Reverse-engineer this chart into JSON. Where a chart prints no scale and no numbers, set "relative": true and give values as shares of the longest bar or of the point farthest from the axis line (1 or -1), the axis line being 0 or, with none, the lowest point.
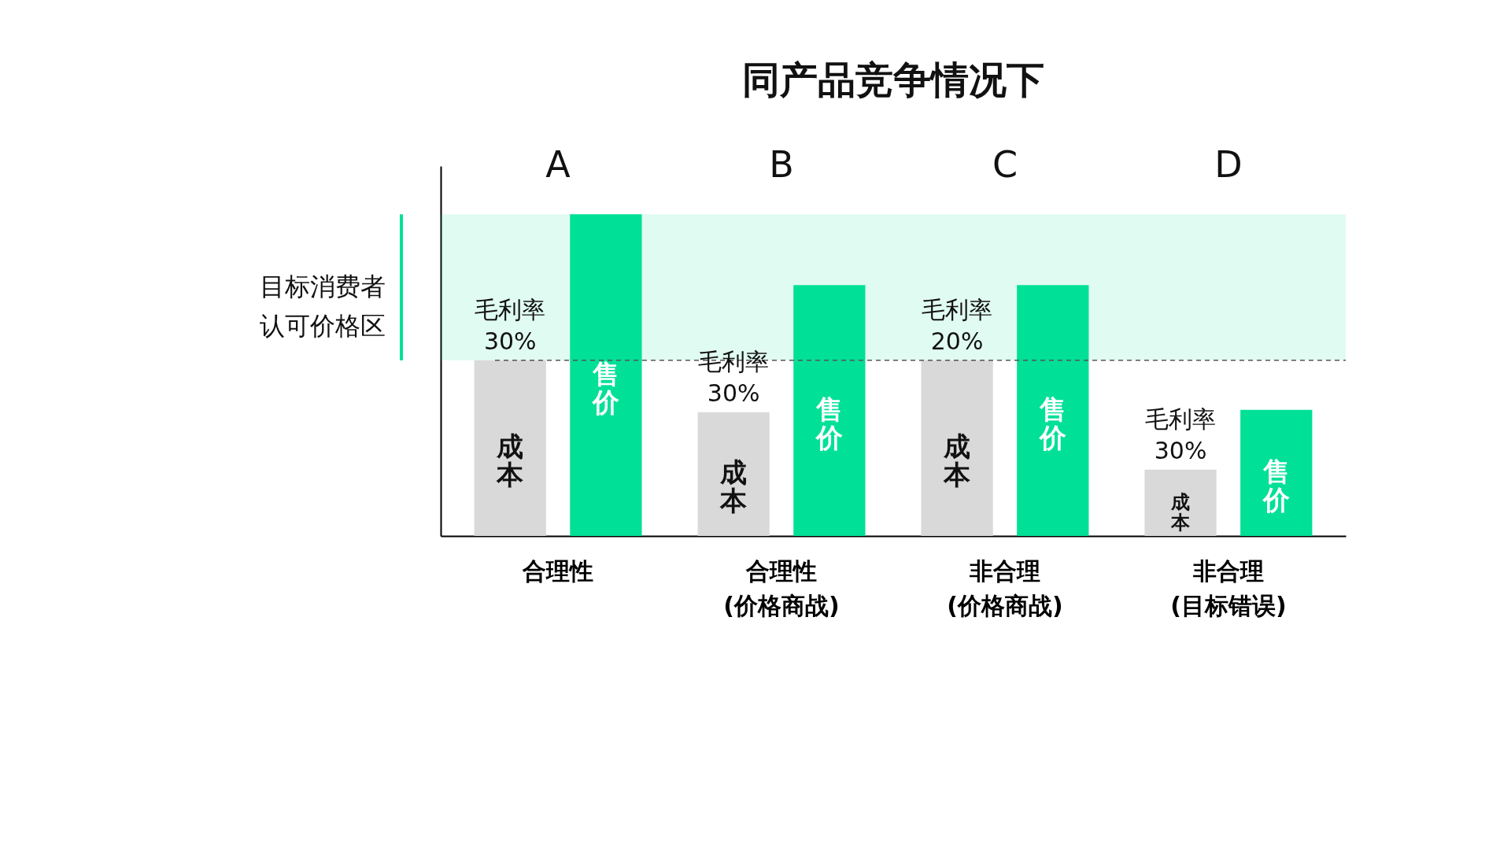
{
  "chart_data": {
    "type": "bar",
    "title": "同产品竞争情况下",
    "relative": true,
    "categories": [
      "合理性",
      "合理性\n(价格商战)",
      "非合理\n(价格商战)",
      "非合理\n(目标错误)"
    ],
    "series": [
      {
        "name": "成本",
        "color": "#d9d9d9",
        "values": [
          0.546,
          0.385,
          0.546,
          0.206
        ]
      },
      {
        "name": "售价",
        "color": "#00e096",
        "values": [
          1,
          0.78,
          0.78,
          0.392
        ]
      }
    ],
    "annotations": [
      "A",
      "B",
      "C",
      "D",
      "毛利率\n30%",
      "毛利率\n30%",
      "毛利率\n20%",
      "毛利率\n30%"
    ],
    "ref_lines": [
      {
        "axis": "y",
        "value": 0.546,
        "color": "#555555",
        "line_style": "dashed"
      }
    ],
    "bands": [
      {
        "axis": "y",
        "from": 0.546,
        "to": 1.0,
        "label": "目标消费者认可价格区",
        "color": "#00e096"
      }
    ],
    "grid": false,
    "tick_labels": "x"
  }
}
